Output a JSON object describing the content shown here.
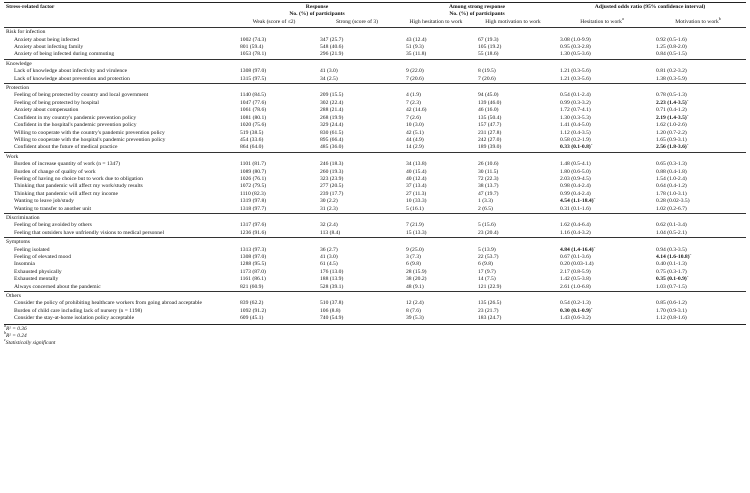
{
  "headers": {
    "factor": "Stress-related factor",
    "response": "Response",
    "response_sub": "No. (%) of participants",
    "among": "Among strong response",
    "among_sub": "No. (%) of participants",
    "odds": "Adjusted odds ratio (95% confidence interval)",
    "weak": "Weak (score of ≤2)",
    "strong": "Strong (score of 3)",
    "high_hes": "High hesitation to work",
    "high_mot": "High motivation to work",
    "hes_work": "Hesitation to work",
    "hes_sup": "a",
    "mot_work": "Motivation to work",
    "mot_sup": "b"
  },
  "sections": [
    {
      "title": "Risk for infection",
      "rows": [
        {
          "label": "Anxiety about being infected",
          "weak": "1002 (74.3)",
          "strong": "347 (25.7)",
          "hes": "43 (12.4)",
          "mot": "67 (19.3)",
          "or_h": "3.08 (1.0-9.9)",
          "or_m": "0.92 (0.5-1.6)"
        },
        {
          "label": "Anxiety about infecting family",
          "weak": "801 (59.4)",
          "strong": "548 (40.6)",
          "hes": "51 (9.3)",
          "mot": "105 (19.2)",
          "or_h": "0.95 (0.3-2.8)",
          "or_m": "1.25 (0.8-2.0)"
        },
        {
          "label": "Anxiety of being infected during commuting",
          "weak": "1053 (78.1)",
          "strong": "296 (21.9)",
          "hes": "35 (11.8)",
          "mot": "55 (18.6)",
          "or_h": "1.30 (0.5-3.6)",
          "or_m": "0.84 (0.5-1.5)"
        }
      ]
    },
    {
      "title": "Knowledge",
      "rows": [
        {
          "label": "Lack of knowledge about infectivity and virulence",
          "weak": "1308 (97.0)",
          "strong": "41 (3.0)",
          "hes": "9 (22.0)",
          "mot": "8 (19.5)",
          "or_h": "1.21 (0.3-5.6)",
          "or_m": "0.81 (0.2-3.2)"
        },
        {
          "label": "Lack of knowledge about prevention and protection",
          "weak": "1315 (97.5)",
          "strong": "34 (2.5)",
          "hes": "7 (20.6)",
          "mot": "7 (20.6)",
          "or_h": "1.21 (0.3-5.6)",
          "or_m": "1.38 (0.3-5.9)"
        }
      ]
    },
    {
      "title": "Protection",
      "rows": [
        {
          "label": "Feeling of being protected by country and local government",
          "weak": "1140 (84.5)",
          "strong": "209 (15.5)",
          "hes": "4 (1.9)",
          "mot": "94 (45.0)",
          "or_h": "0.54 (0.1-2.4)",
          "or_m": "0.78 (0.5-1.3)"
        },
        {
          "label": "Feeling of being protected by hospital",
          "weak": "1047 (77.6)",
          "strong": "302 (22.4)",
          "hes": "7 (2.3)",
          "mot": "139 (46.0)",
          "or_h": "0.99 (0.3-3.2)",
          "or_m": "2.23 (1.4-3.5)",
          "or_m_bold": true,
          "or_m_sup": "c"
        },
        {
          "label": "Anxiety about compensation",
          "weak": "1061 (78.6)",
          "strong": "288 (21.4)",
          "hes": "42 (14.6)",
          "mot": "46 (16.0)",
          "or_h": "1.72 (0.7-4.1)",
          "or_m": "0.71 (0.4-1.2)"
        },
        {
          "label": "Confident in my country's pandemic prevention policy",
          "weak": "1081 (80.1)",
          "strong": "268 (19.9)",
          "hes": "7 (2.6)",
          "mot": "135 (50.4)",
          "or_h": "1.30 (0.3-5.3)",
          "or_m": "2.19 (1.4-3.5)",
          "or_m_bold": true,
          "or_m_sup": "c"
        },
        {
          "label": "Confident in the hospital's pandemic prevention policy",
          "weak": "1020 (75.6)",
          "strong": "329 (24.4)",
          "hes": "10 (3.0)",
          "mot": "157 (47.7)",
          "or_h": "1.41 (0.4-5.0)",
          "or_m": "1.62 (1.0-2.6)"
        },
        {
          "label": "Willing to cooperate with the country's pandemic prevention policy",
          "weak": "519 (38.5)",
          "strong": "830 (61.5)",
          "hes": "42 (5.1)",
          "mot": "231 (27.8)",
          "or_h": "1.12 (0.4-3.5)",
          "or_m": "1.20 (0.7-2.2)"
        },
        {
          "label": "Willing to cooperate with the hospital's pandemic prevention policy",
          "weak": "454 (33.6)",
          "strong": "895 (66.4)",
          "hes": "44 (4.9)",
          "mot": "242 (27.0)",
          "or_h": "0.58 (0.2-1.9)",
          "or_m": "1.65 (0.9-3.1)"
        },
        {
          "label": "Confident about the future of medical practice",
          "weak": "864 (64.0)",
          "strong": "485 (36.0)",
          "hes": "14 (2.9)",
          "mot": "189 (39.0)",
          "or_h": "0.33 (0.1-0.8)",
          "or_h_bold": true,
          "or_h_sup": "c",
          "or_m": "2.56 (1.8-3.6)",
          "or_m_bold": true,
          "or_m_sup": "c"
        }
      ]
    },
    {
      "title": "Work",
      "rows": [
        {
          "label": "Burden of increase quantity of work (n = 1347)",
          "weak": "1101 (81.7)",
          "strong": "246 (18.3)",
          "hes": "34 (13.8)",
          "mot": "26 (10.6)",
          "or_h": "1.48 (0.5-4.1)",
          "or_m": "0.65 (0.3-1.3)"
        },
        {
          "label": "Burden of change of quality of work",
          "weak": "1089 (80.7)",
          "strong": "260 (19.3)",
          "hes": "40 (15.4)",
          "mot": "30 (11.5)",
          "or_h": "1.80 (0.6-5.0)",
          "or_m": "0.88 (0.4-1.8)"
        },
        {
          "label": "Feeling of having no choice but to work due to obligation",
          "weak": "1026 (76.1)",
          "strong": "323 (23.9)",
          "hes": "40 (12.4)",
          "mot": "72 (22.3)",
          "or_h": "2.03 (0.9-4.5)",
          "or_m": "1.54 (1.0-2.4)"
        },
        {
          "label": "Thinking that pandemic will affect my work/study results",
          "weak": "1072 (79.5)",
          "strong": "277 (20.5)",
          "hes": "37 (13.4)",
          "mot": "38 (13.7)",
          "or_h": "0.98 (0.4-2.4)",
          "or_m": "0.64 (0.4-1.2)"
        },
        {
          "label": "Thinking that pandemic will affect my income",
          "weak": "1110 (82.3)",
          "strong": "239 (17.7)",
          "hes": "27 (11.3)",
          "mot": "47 (19.7)",
          "or_h": "0.99 (0.4-2.4)",
          "or_m": "1.78 (1.0-3.1)"
        },
        {
          "label": "Wanting to leave job/study",
          "weak": "1319 (97.8)",
          "strong": "30 (2.2)",
          "hes": "10 (33.3)",
          "mot": "1 (3.3)",
          "or_h": "4.54 (1.1-18.4)",
          "or_h_bold": true,
          "or_h_sup": "c",
          "or_m": "0.28 (0.02-3.5)"
        },
        {
          "label": "Wanting to transfer to another unit",
          "weak": "1318 (97.7)",
          "strong": "31 (2.3)",
          "hes": "5 (16.1)",
          "mot": "2 (6.5)",
          "or_h": "0.31 (0.1-1.6)",
          "or_m": "1.02 (0.2-6.7)"
        }
      ]
    },
    {
      "title": "Discrimination",
      "rows": [
        {
          "label": "Feeling of being avoided by others",
          "weak": "1317 (97.6)",
          "strong": "32 (2.4)",
          "hes": "7 (21.9)",
          "mot": "5 (15.6)",
          "or_h": "1.62 (0.4-6.4)",
          "or_m": "0.62 (0.1-3.4)"
        },
        {
          "label": "Feeling that outsiders have unfriendly visions to medical personnel",
          "weak": "1236 (91.6)",
          "strong": "113 (8.4)",
          "hes": "15 (13.3)",
          "mot": "23 (20.4)",
          "or_h": "1.16 (0.4-3.2)",
          "or_m": "1.04 (0.5-2.1)"
        }
      ]
    },
    {
      "title": "Symptoms",
      "rows": [
        {
          "label": "Feeling isolated",
          "weak": "1313 (97.3)",
          "strong": "36 (2.7)",
          "hes": "9 (25.0)",
          "mot": "5 (13.9)",
          "or_h": "4.84 (1.4-16.4)",
          "or_h_bold": true,
          "or_h_sup": "c",
          "or_m": "0.94 (0.3-3.5)"
        },
        {
          "label": "Feeling of elevated mood",
          "weak": "1308 (97.0)",
          "strong": "41 (3.0)",
          "hes": "3 (7.3)",
          "mot": "22 (53.7)",
          "or_h": "0.67 (0.1-3.6)",
          "or_m": "4.14 (1.6-10.8)",
          "or_m_bold": true,
          "or_m_sup": "c"
        },
        {
          "label": "Insomnia",
          "weak": "1288 (95.5)",
          "strong": "61 (4.5)",
          "hes": "6 (9.8)",
          "mot": "6 (9.8)",
          "or_h": "0.20 (0.03-1.4)",
          "or_m": "0.40 (0.1-1.3)"
        },
        {
          "label": "Exhausted physically",
          "weak": "1173 (87.0)",
          "strong": "176 (13.0)",
          "hes": "28 (15.9)",
          "mot": "17 (9.7)",
          "or_h": "2.17 (0.8-5.9)",
          "or_m": "0.75 (0.3-1.7)"
        },
        {
          "label": "Exhausted mentally",
          "weak": "1161 (86.1)",
          "strong": "188 (13.9)",
          "hes": "38 (20.2)",
          "mot": "14 (7.5)",
          "or_h": "1.42 (0.5-3.8)",
          "or_m": "0.35 (0.1-0.9)",
          "or_m_bold": true,
          "or_m_sup": "c"
        },
        {
          "label": "Always concerned about the pandemic",
          "weak": "821 (60.9)",
          "strong": "528 (39.1)",
          "hes": "48 (9.1)",
          "mot": "121 (22.9)",
          "or_h": "2.61 (1.0-6.8)",
          "or_m": "1.03 (0.7-1.5)"
        }
      ]
    },
    {
      "title": "Others",
      "rows": [
        {
          "label": "Consider the policy of prohibiting healthcare workers from going abroad acceptable",
          "weak": "839 (62.2)",
          "strong": "510 (37.8)",
          "hes": "12 (2.4)",
          "mot": "135 (26.5)",
          "or_h": "0.54 (0.2-1.3)",
          "or_m": "0.85 (0.6-1.2)"
        },
        {
          "label": "Burden of child care including lack of nursery (n = 1198)",
          "weak": "1092 (91.2)",
          "strong": "106 (8.8)",
          "hes": "8 (7.6)",
          "mot": "23 (21.7)",
          "or_h": "0.30 (0.1-0.9)",
          "or_h_bold": true,
          "or_h_sup": "c",
          "or_m": "1.70 (0.9-3.1)"
        },
        {
          "label": "Consider the stay-at-home isolation policy acceptable",
          "weak": "609 (45.1)",
          "strong": "740 (54.9)",
          "hes": "39 (5.3)",
          "mot": "183 (24.7)",
          "or_h": "1.43 (0.6-3.2)",
          "or_m": "1.12 (0.8-1.6)"
        }
      ]
    }
  ],
  "footnotes": [
    {
      "mark": "a",
      "text": "R² = 0.36"
    },
    {
      "mark": "b",
      "text": "R² = 0.24"
    },
    {
      "mark": "c",
      "text": "Statistically significant"
    }
  ]
}
